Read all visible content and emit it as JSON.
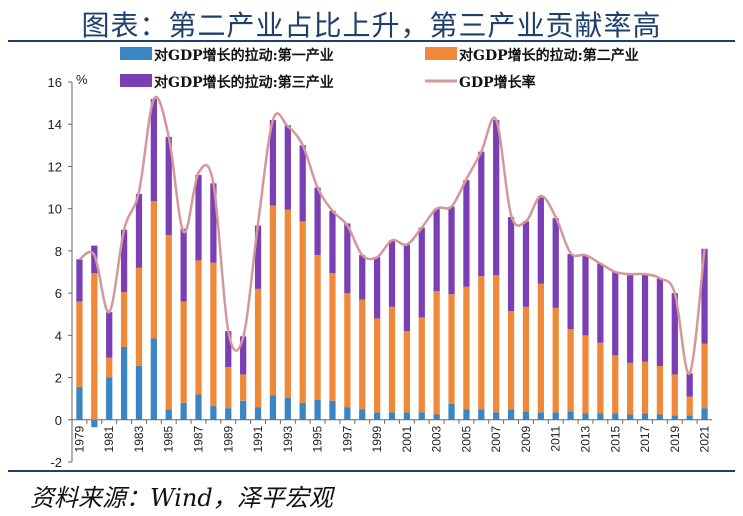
{
  "title": "图表：第二产业占比上升，第三产业贡献率高",
  "source": "资料来源：Wind，泽平宏观",
  "chart_data": {
    "type": "bar",
    "stacked": true,
    "unit": "%",
    "ylim": [
      -2,
      16
    ],
    "yticks": [
      -2,
      0,
      2,
      4,
      6,
      8,
      10,
      12,
      14,
      16
    ],
    "grid": false,
    "legend_position": "top",
    "x_tick_labels": [
      "1979",
      "1981",
      "1983",
      "1985",
      "1987",
      "1989",
      "1991",
      "1993",
      "1995",
      "1997",
      "1999",
      "2001",
      "2003",
      "2005",
      "2007",
      "2009",
      "2011",
      "2013",
      "2015",
      "2017",
      "2019",
      "2021"
    ],
    "categories": [
      "1979",
      "1980",
      "1981",
      "1982",
      "1983",
      "1984",
      "1985",
      "1986",
      "1987",
      "1988",
      "1989",
      "1990",
      "1991",
      "1992",
      "1993",
      "1994",
      "1995",
      "1996",
      "1997",
      "1998",
      "1999",
      "2000",
      "2001",
      "2002",
      "2003",
      "2004",
      "2005",
      "2006",
      "2007",
      "2008",
      "2009",
      "2010",
      "2011",
      "2012",
      "2013",
      "2014",
      "2015",
      "2016",
      "2017",
      "2018",
      "2019",
      "2020",
      "2021"
    ],
    "series": [
      {
        "name": "对GDP增长的拉动:第一产业",
        "color": "#3a86c4",
        "values": [
          1.55,
          -0.35,
          2.0,
          3.45,
          2.55,
          3.85,
          0.5,
          0.8,
          1.2,
          0.65,
          0.55,
          0.9,
          0.6,
          1.15,
          1.05,
          0.8,
          0.95,
          0.9,
          0.6,
          0.5,
          0.35,
          0.35,
          0.35,
          0.35,
          0.25,
          0.75,
          0.5,
          0.5,
          0.35,
          0.5,
          0.4,
          0.35,
          0.35,
          0.4,
          0.3,
          0.3,
          0.3,
          0.25,
          0.3,
          0.25,
          0.2,
          0.2,
          0.55
        ]
      },
      {
        "name": "对GDP增长的拉动:第二产业",
        "color": "#f0883a",
        "values": [
          4.05,
          6.95,
          0.95,
          2.6,
          4.65,
          6.5,
          8.25,
          4.8,
          6.35,
          6.8,
          1.95,
          1.25,
          5.6,
          9.0,
          8.9,
          8.6,
          6.85,
          6.05,
          5.4,
          5.2,
          4.45,
          5.0,
          3.85,
          4.5,
          5.85,
          5.2,
          5.8,
          6.3,
          6.5,
          4.65,
          4.95,
          6.1,
          4.95,
          3.9,
          3.7,
          3.35,
          2.75,
          2.45,
          2.45,
          2.3,
          1.95,
          0.9,
          3.05
        ]
      },
      {
        "name": "对GDP增长的拉动:第三产业",
        "color": "#7b3fb5",
        "values": [
          2.0,
          1.3,
          2.15,
          2.95,
          3.5,
          4.85,
          4.65,
          3.45,
          4.05,
          3.75,
          1.7,
          1.8,
          3.0,
          4.05,
          4.0,
          3.6,
          3.2,
          2.95,
          3.3,
          2.1,
          2.9,
          3.15,
          4.1,
          4.25,
          3.9,
          4.15,
          5.05,
          5.9,
          7.35,
          4.45,
          4.05,
          4.15,
          4.25,
          3.55,
          3.8,
          3.75,
          3.95,
          4.15,
          4.15,
          4.15,
          3.85,
          1.1,
          4.5
        ]
      }
    ],
    "line": {
      "name": "GDP增长率",
      "color": "#d4989a",
      "values": [
        7.6,
        7.8,
        5.1,
        9.0,
        10.8,
        15.2,
        13.4,
        8.9,
        11.7,
        11.2,
        4.2,
        3.9,
        9.3,
        14.2,
        13.9,
        13.0,
        11.0,
        9.9,
        9.2,
        7.8,
        7.7,
        8.5,
        8.3,
        9.1,
        10.0,
        10.1,
        11.4,
        12.7,
        14.2,
        9.7,
        9.4,
        10.6,
        9.6,
        7.9,
        7.8,
        7.4,
        7.0,
        6.9,
        6.9,
        6.7,
        6.0,
        2.2,
        8.1
      ]
    }
  }
}
